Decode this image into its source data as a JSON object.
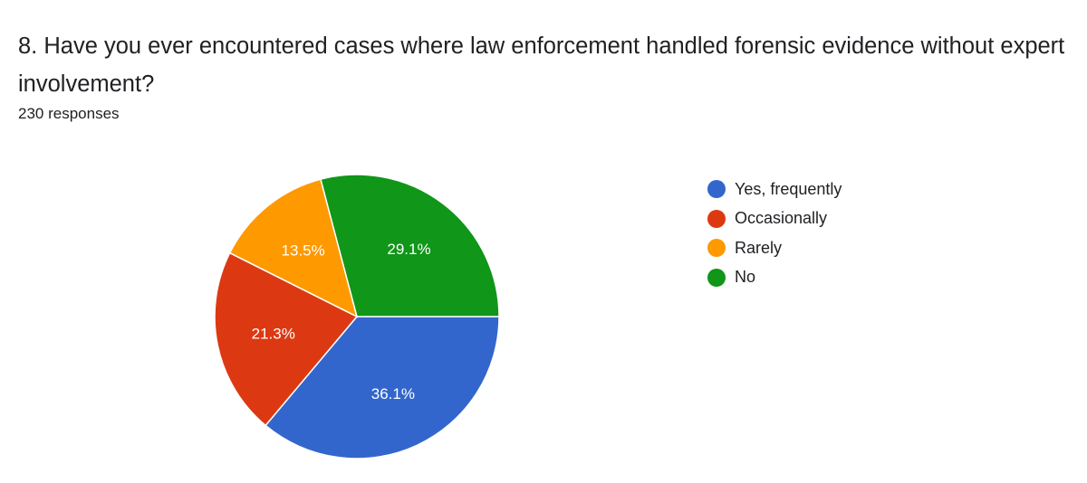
{
  "question": {
    "title": "8. Have you ever encountered cases where law enforcement handled forensic evidence without expert involvement?",
    "responses": "230 responses"
  },
  "chart_data": {
    "type": "pie",
    "categories": [
      "Yes, frequently",
      "Occasionally",
      "Rarely",
      "No"
    ],
    "values": [
      36.1,
      21.3,
      13.5,
      29.1
    ],
    "labels": [
      "36.1%",
      "21.3%",
      "13.5%",
      "29.1%"
    ],
    "colors": [
      "#3366cc",
      "#dc3912",
      "#ff9900",
      "#109618"
    ],
    "start": "3 o'clock, clockwise",
    "legend_position": "right"
  }
}
